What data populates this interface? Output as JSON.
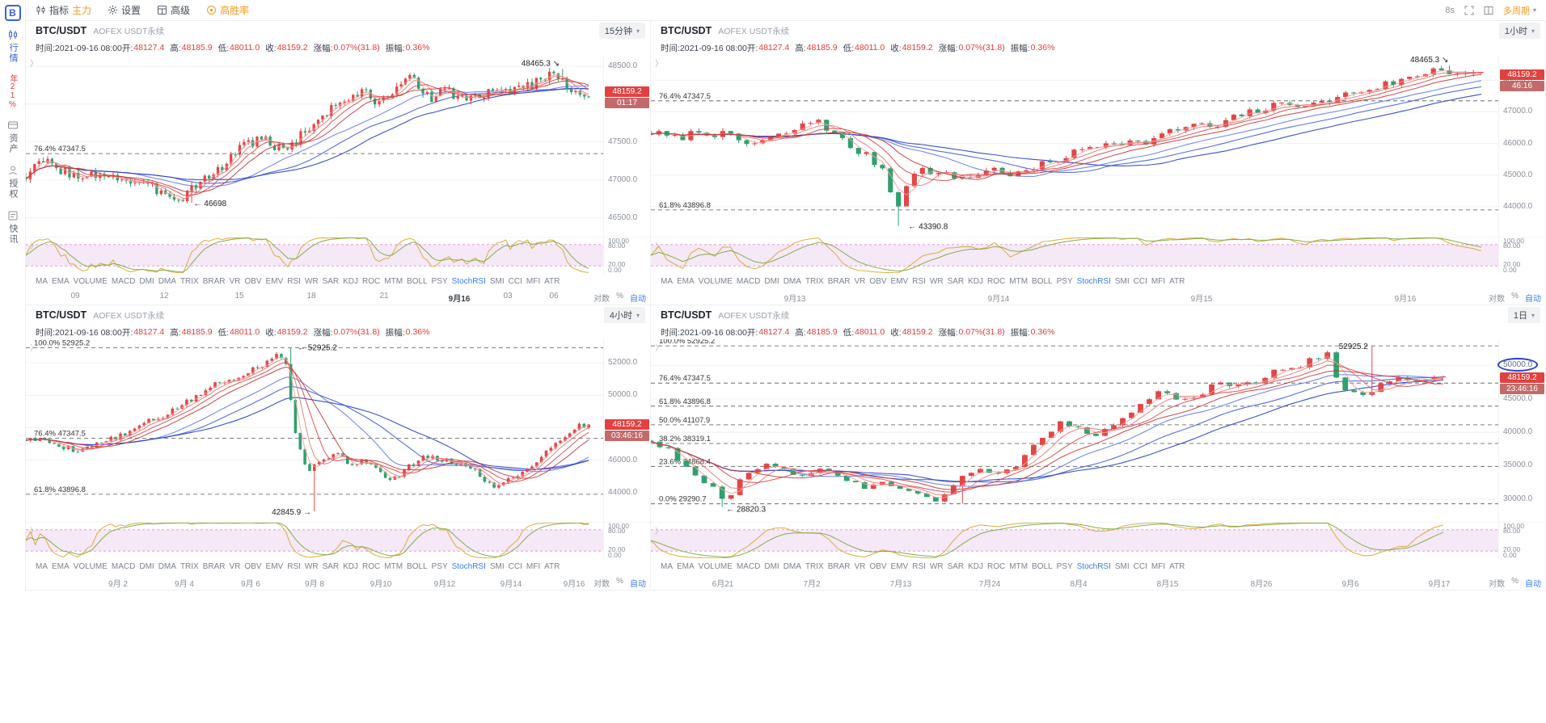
{
  "icons": {
    "caret_down": "▾",
    "chevron_right": "〉",
    "logo_letter": "B"
  },
  "toolbar": {
    "indicator": "指标",
    "main_force": "主力",
    "settings": "设置",
    "advanced": "高级",
    "win_rate": "高胜率",
    "refresh_interval": "8s",
    "multi_period": "多周期"
  },
  "sidebar": {
    "market": "行情",
    "yearly_badge": "年21%",
    "assets": "资产",
    "authorize": "授权",
    "news": "快讯"
  },
  "shared": {
    "symbol": "BTC/USDT",
    "exchange": "AOFEX USDT永续",
    "info_segments": [
      {
        "t": "时间:2021-09-16 08:00",
        "c": "k"
      },
      {
        "t": "开:",
        "c": "k"
      },
      {
        "t": "48127.4",
        "c": "r"
      },
      {
        "t": "高:",
        "c": "k"
      },
      {
        "t": "48185.9",
        "c": "r"
      },
      {
        "t": "低:",
        "c": "k"
      },
      {
        "t": "48011.0",
        "c": "r"
      },
      {
        "t": "收:",
        "c": "k"
      },
      {
        "t": "48159.2",
        "c": "r"
      },
      {
        "t": "涨幅:",
        "c": "k"
      },
      {
        "t": "0.07%(31.8)",
        "c": "r"
      },
      {
        "t": "振幅:",
        "c": "k"
      },
      {
        "t": "0.36%",
        "c": "r"
      }
    ],
    "tabs": [
      "MA",
      "EMA",
      "VOLUME",
      "MACD",
      "DMI",
      "DMA",
      "TRIX",
      "BRAR",
      "VR",
      "OBV",
      "EMV",
      "RSI",
      "WR",
      "SAR",
      "KDJ",
      "ROC",
      "MTM",
      "BOLL",
      "PSY",
      "StochRSI",
      "SMI",
      "CCI",
      "MFI",
      "ATR"
    ],
    "active_tab": "StochRSI",
    "axis_controls": [
      {
        "label": "对数",
        "accent": false
      },
      {
        "label": "%",
        "accent": false
      },
      {
        "label": "自动",
        "accent": true
      }
    ],
    "osc_ticks": [
      "100.00",
      "80.00",
      "20.00",
      "0.00"
    ]
  },
  "chart_data": [
    {
      "type": "candlestick",
      "title": "BTC/USDT",
      "timeframe": "15分钟",
      "last_price": "48159.2",
      "countdown": "01:17",
      "y_ticks": [
        {
          "label": "48500.0",
          "value": 48500
        },
        {
          "label": "48000.0",
          "value": 48000
        },
        {
          "label": "47500.0",
          "value": 47500
        },
        {
          "label": "47000.0",
          "value": 47000
        },
        {
          "label": "46500.0",
          "value": 46500
        }
      ],
      "y_min": 46250,
      "y_max": 48650,
      "fib_lines": [
        {
          "label": "76.4% 47347.5",
          "price": 47347.5
        }
      ],
      "annotations": [
        {
          "label": "48465.3 ↘",
          "x": 0.93,
          "price": 48465.3,
          "align": "left",
          "dy": -4
        },
        {
          "label": "← 46698",
          "x": 0.285,
          "price": 46698,
          "align": "right",
          "dy": 4
        }
      ],
      "time_labels": [
        {
          "label": "09",
          "x": 0.085
        },
        {
          "label": "12",
          "x": 0.24
        },
        {
          "label": "15",
          "x": 0.37
        },
        {
          "label": "18",
          "x": 0.495
        },
        {
          "label": "21",
          "x": 0.62
        },
        {
          "label": "9月16",
          "x": 0.75,
          "strong": true
        },
        {
          "label": "03",
          "x": 0.835
        },
        {
          "label": "06",
          "x": 0.915
        }
      ],
      "anchors": [
        [
          0,
          47050
        ],
        [
          0.03,
          47250
        ],
        [
          0.07,
          47120
        ],
        [
          0.1,
          46980
        ],
        [
          0.13,
          47100
        ],
        [
          0.17,
          47020
        ],
        [
          0.21,
          46900
        ],
        [
          0.25,
          46850
        ],
        [
          0.275,
          46730
        ],
        [
          0.3,
          46950
        ],
        [
          0.34,
          47100
        ],
        [
          0.38,
          47450
        ],
        [
          0.42,
          47550
        ],
        [
          0.45,
          47400
        ],
        [
          0.48,
          47520
        ],
        [
          0.52,
          47800
        ],
        [
          0.56,
          48050
        ],
        [
          0.6,
          48150
        ],
        [
          0.63,
          48000
        ],
        [
          0.66,
          48250
        ],
        [
          0.69,
          48330
        ],
        [
          0.72,
          48100
        ],
        [
          0.75,
          48150
        ],
        [
          0.79,
          48060
        ],
        [
          0.83,
          48150
        ],
        [
          0.87,
          48220
        ],
        [
          0.9,
          48260
        ],
        [
          0.93,
          48430
        ],
        [
          0.96,
          48230
        ],
        [
          1,
          48160
        ]
      ],
      "force": [
        {
          "x": 0.285,
          "price": 46698,
          "kind": "low"
        },
        {
          "x": 0.93,
          "price": 48465.3,
          "kind": "high"
        }
      ],
      "candle_count": 130,
      "seed": 3,
      "noise": 0.0016,
      "x_end": 0.975,
      "highlight_tick": null
    },
    {
      "type": "candlestick",
      "title": "BTC/USDT",
      "timeframe": "1小时",
      "last_price": "48159.2",
      "countdown": "46:16",
      "y_ticks": [
        {
          "label": "48000.0",
          "value": 48000
        },
        {
          "label": "47000.0",
          "value": 47000
        },
        {
          "label": "46000.0",
          "value": 46000
        },
        {
          "label": "45000.0",
          "value": 45000
        },
        {
          "label": "44000.0",
          "value": 44000
        }
      ],
      "y_min": 43050,
      "y_max": 48800,
      "fib_lines": [
        {
          "label": "76.4% 47347.5",
          "price": 47347.5
        },
        {
          "label": "61.8% 43896.8",
          "price": 43896.8
        }
      ],
      "annotations": [
        {
          "label": "48465.3 ↘",
          "x": 0.945,
          "price": 48465.3,
          "align": "left",
          "dy": -4
        },
        {
          "label": "← 43390.8",
          "x": 0.3,
          "price": 43390.8,
          "align": "right",
          "dy": 4
        }
      ],
      "time_labels": [
        {
          "label": "9月13",
          "x": 0.17
        },
        {
          "label": "9月14",
          "x": 0.41
        },
        {
          "label": "9月15",
          "x": 0.65
        },
        {
          "label": "9月16",
          "x": 0.89
        }
      ],
      "anchors": [
        [
          0,
          46350
        ],
        [
          0.03,
          46150
        ],
        [
          0.06,
          46400
        ],
        [
          0.09,
          46250
        ],
        [
          0.12,
          45950
        ],
        [
          0.15,
          46200
        ],
        [
          0.18,
          46500
        ],
        [
          0.2,
          46800
        ],
        [
          0.22,
          46300
        ],
        [
          0.24,
          45900
        ],
        [
          0.26,
          45600
        ],
        [
          0.28,
          45200
        ],
        [
          0.295,
          43900
        ],
        [
          0.31,
          44900
        ],
        [
          0.33,
          45200
        ],
        [
          0.35,
          45000
        ],
        [
          0.38,
          44900
        ],
        [
          0.41,
          45200
        ],
        [
          0.44,
          45000
        ],
        [
          0.47,
          45300
        ],
        [
          0.5,
          45600
        ],
        [
          0.53,
          45900
        ],
        [
          0.56,
          46100
        ],
        [
          0.59,
          46000
        ],
        [
          0.62,
          46300
        ],
        [
          0.65,
          46600
        ],
        [
          0.68,
          46500
        ],
        [
          0.71,
          46900
        ],
        [
          0.74,
          47100
        ],
        [
          0.77,
          47300
        ],
        [
          0.8,
          47200
        ],
        [
          0.83,
          47500
        ],
        [
          0.86,
          47700
        ],
        [
          0.89,
          47900
        ],
        [
          0.92,
          48100
        ],
        [
          0.945,
          48400
        ],
        [
          0.97,
          48250
        ],
        [
          1,
          48160
        ]
      ],
      "force": [
        {
          "x": 0.295,
          "price": 43390.8,
          "kind": "low"
        },
        {
          "x": 0.945,
          "price": 48465.3,
          "kind": "high"
        }
      ],
      "candle_count": 105,
      "seed": 7,
      "noise": 0.0028,
      "x_end": 0.98,
      "highlight_tick": null
    },
    {
      "type": "candlestick",
      "title": "BTC/USDT",
      "timeframe": "4小时",
      "last_price": "48159.2",
      "countdown": "03:46:16",
      "y_ticks": [
        {
          "label": "52000.0",
          "value": 52000
        },
        {
          "label": "50000.0",
          "value": 50000
        },
        {
          "label": "48000.0",
          "value": 48000
        },
        {
          "label": "46000.0",
          "value": 46000
        },
        {
          "label": "44000.0",
          "value": 44000
        }
      ],
      "y_min": 42200,
      "y_max": 53450,
      "fib_lines": [
        {
          "label": "100.0% 52925.2",
          "price": 52925.2
        },
        {
          "label": "76.4% 47347.5",
          "price": 47347.5
        },
        {
          "label": "61.8% 43896.8",
          "price": 43896.8
        }
      ],
      "annotations": [
        {
          "label": "← 52925.2",
          "x": 0.465,
          "price": 52925.2,
          "align": "right",
          "dy": 3
        },
        {
          "label": "42845.9 →",
          "x": 0.5,
          "price": 42845.9,
          "align": "left",
          "dy": 4
        }
      ],
      "time_labels": [
        {
          "label": "9月 2",
          "x": 0.16
        },
        {
          "label": "9月 4",
          "x": 0.275
        },
        {
          "label": "9月 6",
          "x": 0.39
        },
        {
          "label": "9月 8",
          "x": 0.5
        },
        {
          "label": "9月10",
          "x": 0.615
        },
        {
          "label": "9月12",
          "x": 0.725
        },
        {
          "label": "9月14",
          "x": 0.84
        },
        {
          "label": "9月16",
          "x": 0.95
        }
      ],
      "anchors": [
        [
          0,
          47300
        ],
        [
          0.03,
          47250
        ],
        [
          0.06,
          46900
        ],
        [
          0.09,
          46600
        ],
        [
          0.12,
          46900
        ],
        [
          0.15,
          47300
        ],
        [
          0.18,
          47600
        ],
        [
          0.21,
          48300
        ],
        [
          0.24,
          48600
        ],
        [
          0.27,
          49300
        ],
        [
          0.3,
          49800
        ],
        [
          0.33,
          50600
        ],
        [
          0.36,
          50900
        ],
        [
          0.39,
          51400
        ],
        [
          0.42,
          51900
        ],
        [
          0.445,
          52600
        ],
        [
          0.46,
          52400
        ],
        [
          0.48,
          47500
        ],
        [
          0.5,
          45200
        ],
        [
          0.52,
          46000
        ],
        [
          0.55,
          46400
        ],
        [
          0.58,
          45700
        ],
        [
          0.6,
          46100
        ],
        [
          0.63,
          45200
        ],
        [
          0.65,
          44700
        ],
        [
          0.68,
          45600
        ],
        [
          0.71,
          46200
        ],
        [
          0.74,
          46000
        ],
        [
          0.77,
          45800
        ],
        [
          0.8,
          45300
        ],
        [
          0.83,
          44300
        ],
        [
          0.86,
          44900
        ],
        [
          0.89,
          45400
        ],
        [
          0.92,
          46400
        ],
        [
          0.95,
          47300
        ],
        [
          0.98,
          48100
        ],
        [
          1,
          48160
        ]
      ],
      "force": [
        {
          "x": 0.455,
          "price": 52925.2,
          "kind": "high"
        },
        {
          "x": 0.5,
          "price": 42845.9,
          "kind": "low"
        }
      ],
      "candle_count": 120,
      "seed": 5,
      "noise": 0.0035,
      "x_end": 0.975,
      "highlight_tick": null
    },
    {
      "type": "candlestick",
      "title": "BTC/USDT",
      "timeframe": "1日",
      "last_price": "48159.2",
      "countdown": "23:46:16",
      "y_ticks": [
        {
          "label": "50000.0",
          "value": 50000
        },
        {
          "label": "45000.0",
          "value": 45000
        },
        {
          "label": "40000.0",
          "value": 40000
        },
        {
          "label": "35000.0",
          "value": 35000
        },
        {
          "label": "30000.0",
          "value": 30000
        }
      ],
      "y_min": 26600,
      "y_max": 53900,
      "fib_lines": [
        {
          "label": "100.0% 52925.2",
          "price": 52925.2
        },
        {
          "label": "76.4% 47347.5",
          "price": 47347.5
        },
        {
          "label": "61.8% 43896.8",
          "price": 43896.8
        },
        {
          "label": "50.0% 41107.9",
          "price": 41107.9
        },
        {
          "label": "38.2% 38319.1",
          "price": 38319.1
        },
        {
          "label": "23.6% 34868.4",
          "price": 34868.4
        },
        {
          "label": "0.0% 29290.7",
          "price": 29290.7
        }
      ],
      "annotations": [
        {
          "label": "52925.2",
          "x": 0.85,
          "price": 52925.2,
          "align": "left",
          "dy": 4
        },
        {
          "label": "← 28820.3",
          "x": 0.085,
          "price": 28820.3,
          "align": "right",
          "dy": 6
        }
      ],
      "time_labels": [
        {
          "label": "6月21",
          "x": 0.085
        },
        {
          "label": "7月2",
          "x": 0.19
        },
        {
          "label": "7月13",
          "x": 0.295
        },
        {
          "label": "7月24",
          "x": 0.4
        },
        {
          "label": "8月4",
          "x": 0.505
        },
        {
          "label": "8月15",
          "x": 0.61
        },
        {
          "label": "8月26",
          "x": 0.72
        },
        {
          "label": "9月6",
          "x": 0.825
        },
        {
          "label": "9月17",
          "x": 0.93
        }
      ],
      "anchors": [
        [
          0,
          38800
        ],
        [
          0.02,
          37500
        ],
        [
          0.04,
          35500
        ],
        [
          0.06,
          33200
        ],
        [
          0.08,
          31500
        ],
        [
          0.095,
          29700
        ],
        [
          0.11,
          32500
        ],
        [
          0.13,
          34200
        ],
        [
          0.15,
          35600
        ],
        [
          0.17,
          34300
        ],
        [
          0.19,
          33500
        ],
        [
          0.21,
          34600
        ],
        [
          0.23,
          33800
        ],
        [
          0.25,
          32600
        ],
        [
          0.27,
          31800
        ],
        [
          0.29,
          32800
        ],
        [
          0.31,
          31500
        ],
        [
          0.33,
          31000
        ],
        [
          0.35,
          30300
        ],
        [
          0.365,
          29700
        ],
        [
          0.38,
          31800
        ],
        [
          0.4,
          33900
        ],
        [
          0.42,
          34600
        ],
        [
          0.44,
          33500
        ],
        [
          0.46,
          35000
        ],
        [
          0.48,
          37500
        ],
        [
          0.5,
          39800
        ],
        [
          0.52,
          41800
        ],
        [
          0.54,
          40300
        ],
        [
          0.56,
          39000
        ],
        [
          0.58,
          40800
        ],
        [
          0.6,
          42500
        ],
        [
          0.62,
          44600
        ],
        [
          0.64,
          46100
        ],
        [
          0.66,
          45200
        ],
        [
          0.68,
          44300
        ],
        [
          0.7,
          46300
        ],
        [
          0.72,
          47600
        ],
        [
          0.74,
          46800
        ],
        [
          0.76,
          47300
        ],
        [
          0.78,
          48800
        ],
        [
          0.8,
          49400
        ],
        [
          0.82,
          49900
        ],
        [
          0.84,
          51300
        ],
        [
          0.855,
          52400
        ],
        [
          0.87,
          45500
        ],
        [
          0.885,
          46300
        ],
        [
          0.9,
          45300
        ],
        [
          0.915,
          46800
        ],
        [
          0.935,
          48160
        ],
        [
          1,
          48160
        ]
      ],
      "force": [
        {
          "x": 0.085,
          "price": 28820.3,
          "kind": "low"
        },
        {
          "x": 0.365,
          "price": 29295,
          "kind": "low"
        },
        {
          "x": 0.855,
          "price": 52925.2,
          "kind": "high"
        }
      ],
      "candle_count": 90,
      "seed": 9,
      "noise": 0.01,
      "x_end": 0.935,
      "highlight_tick": "50000.0"
    }
  ]
}
